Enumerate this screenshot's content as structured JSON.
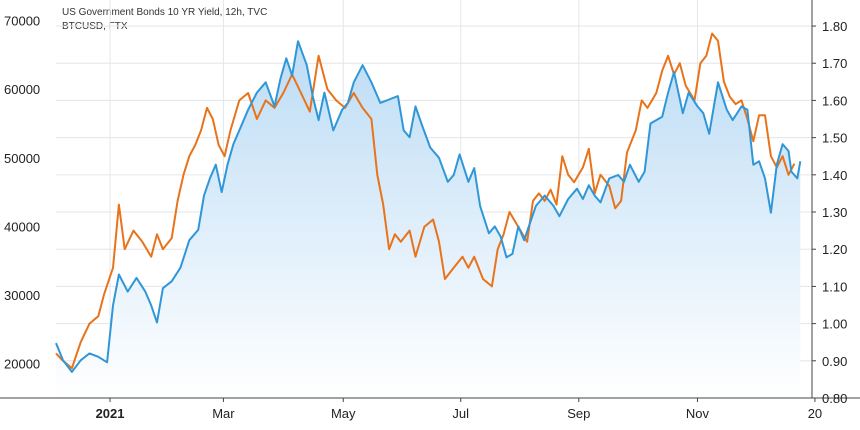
{
  "legend": {
    "line1": "US Government Bonds 10 YR Yield, 12h, TVC",
    "line2": "BTCUSD, FTX"
  },
  "colors": {
    "btc_line": "#2f97d8",
    "btc_fill_top": "#bcdcf5",
    "btc_fill_bottom": "#ffffff",
    "yield_line": "#e8731a",
    "grid": "#e3e6ea",
    "axis": "#444444"
  },
  "chart_data": {
    "type": "line",
    "title": "",
    "grid": true,
    "x_ticks": [
      {
        "label": "2021",
        "bold": true,
        "x": 0.0
      },
      {
        "label": "Mar",
        "bold": false,
        "x": 1.93
      },
      {
        "label": "May",
        "bold": false,
        "x": 3.97
      },
      {
        "label": "Jul",
        "bold": false,
        "x": 5.97
      },
      {
        "label": "Sep",
        "bold": false,
        "x": 7.98
      },
      {
        "label": "Nov",
        "bold": false,
        "x": 10.0
      },
      {
        "label": "20",
        "bold": false,
        "x": 12.0
      }
    ],
    "x_axis": {
      "label": "",
      "unit": "months since 2021-01-01",
      "range": [
        -0.92,
        11.95
      ]
    },
    "left_axis": {
      "label": "",
      "range": [
        15000,
        73000
      ],
      "ticks": [
        20000,
        30000,
        40000,
        50000,
        60000,
        70000
      ]
    },
    "right_axis": {
      "label": "",
      "range": [
        0.8,
        1.87
      ],
      "ticks": [
        0.8,
        0.9,
        1.0,
        1.1,
        1.2,
        1.3,
        1.4,
        1.5,
        1.6,
        1.7,
        1.8
      ]
    },
    "series": [
      {
        "name": "BTCUSD, FTX",
        "axis": "left",
        "area": true,
        "points": [
          [
            -0.95,
            23000
          ],
          [
            -0.8,
            20500
          ],
          [
            -0.65,
            18800
          ],
          [
            -0.5,
            20500
          ],
          [
            -0.35,
            21500
          ],
          [
            -0.2,
            21000
          ],
          [
            -0.05,
            20200
          ],
          [
            0.05,
            28500
          ],
          [
            0.15,
            33000
          ],
          [
            0.3,
            30500
          ],
          [
            0.45,
            32500
          ],
          [
            0.6,
            30500
          ],
          [
            0.7,
            28500
          ],
          [
            0.8,
            26000
          ],
          [
            0.9,
            31000
          ],
          [
            1.05,
            32000
          ],
          [
            1.2,
            34000
          ],
          [
            1.35,
            38000
          ],
          [
            1.5,
            39500
          ],
          [
            1.6,
            44500
          ],
          [
            1.7,
            47000
          ],
          [
            1.8,
            49000
          ],
          [
            1.9,
            45000
          ],
          [
            2.0,
            49000
          ],
          [
            2.1,
            52000
          ],
          [
            2.2,
            54000
          ],
          [
            2.35,
            57000
          ],
          [
            2.5,
            59500
          ],
          [
            2.65,
            61000
          ],
          [
            2.8,
            57500
          ],
          [
            2.9,
            61500
          ],
          [
            3.0,
            64500
          ],
          [
            3.1,
            62000
          ],
          [
            3.2,
            67000
          ],
          [
            3.35,
            63500
          ],
          [
            3.45,
            59000
          ],
          [
            3.55,
            55500
          ],
          [
            3.65,
            59500
          ],
          [
            3.8,
            54000
          ],
          [
            3.95,
            57000
          ],
          [
            4.05,
            58000
          ],
          [
            4.15,
            61000
          ],
          [
            4.3,
            63500
          ],
          [
            4.45,
            61000
          ],
          [
            4.6,
            58000
          ],
          [
            4.75,
            58500
          ],
          [
            4.9,
            59000
          ],
          [
            5.0,
            54000
          ],
          [
            5.1,
            53000
          ],
          [
            5.2,
            57500
          ],
          [
            5.3,
            55000
          ],
          [
            5.45,
            51500
          ],
          [
            5.6,
            50000
          ],
          [
            5.75,
            46500
          ],
          [
            5.85,
            47500
          ],
          [
            5.95,
            50500
          ],
          [
            6.1,
            46500
          ],
          [
            6.2,
            48500
          ],
          [
            6.3,
            43000
          ],
          [
            6.45,
            39000
          ],
          [
            6.55,
            40000
          ],
          [
            6.65,
            38500
          ],
          [
            6.75,
            35500
          ],
          [
            6.85,
            36000
          ],
          [
            6.95,
            40000
          ],
          [
            7.05,
            38000
          ],
          [
            7.15,
            40500
          ],
          [
            7.25,
            43000
          ],
          [
            7.4,
            44500
          ],
          [
            7.55,
            43000
          ],
          [
            7.65,
            41500
          ],
          [
            7.8,
            44000
          ],
          [
            7.95,
            45500
          ],
          [
            8.05,
            44000
          ],
          [
            8.15,
            46000
          ],
          [
            8.25,
            44500
          ],
          [
            8.35,
            43500
          ],
          [
            8.5,
            47000
          ],
          [
            8.65,
            47500
          ],
          [
            8.75,
            46500
          ],
          [
            8.85,
            49000
          ],
          [
            9.0,
            46500
          ],
          [
            9.1,
            48000
          ],
          [
            9.2,
            55000
          ],
          [
            9.3,
            55500
          ],
          [
            9.4,
            56000
          ],
          [
            9.5,
            59500
          ],
          [
            9.6,
            62500
          ],
          [
            9.75,
            56500
          ],
          [
            9.85,
            59500
          ],
          [
            10.0,
            57500
          ],
          [
            10.1,
            56500
          ],
          [
            10.2,
            53500
          ],
          [
            10.35,
            61000
          ],
          [
            10.5,
            57000
          ],
          [
            10.6,
            55500
          ],
          [
            10.75,
            57500
          ],
          [
            10.85,
            57000
          ],
          [
            10.95,
            49000
          ],
          [
            11.05,
            49500
          ],
          [
            11.15,
            47000
          ],
          [
            11.25,
            42000
          ],
          [
            11.35,
            49000
          ],
          [
            11.45,
            52000
          ],
          [
            11.55,
            51000
          ],
          [
            11.6,
            48000
          ],
          [
            11.7,
            47000
          ],
          [
            11.75,
            49500
          ]
        ]
      },
      {
        "name": "US Government Bonds 10 YR Yield, 12h, TVC",
        "axis": "right",
        "area": false,
        "points": [
          [
            -0.95,
            0.92
          ],
          [
            -0.8,
            0.9
          ],
          [
            -0.65,
            0.88
          ],
          [
            -0.5,
            0.95
          ],
          [
            -0.35,
            1.0
          ],
          [
            -0.2,
            1.02
          ],
          [
            -0.1,
            1.08
          ],
          [
            0.05,
            1.15
          ],
          [
            0.15,
            1.32
          ],
          [
            0.25,
            1.2
          ],
          [
            0.4,
            1.25
          ],
          [
            0.55,
            1.22
          ],
          [
            0.7,
            1.18
          ],
          [
            0.8,
            1.24
          ],
          [
            0.9,
            1.2
          ],
          [
            1.05,
            1.23
          ],
          [
            1.15,
            1.33
          ],
          [
            1.25,
            1.4
          ],
          [
            1.35,
            1.45
          ],
          [
            1.45,
            1.48
          ],
          [
            1.55,
            1.52
          ],
          [
            1.65,
            1.58
          ],
          [
            1.75,
            1.55
          ],
          [
            1.85,
            1.48
          ],
          [
            1.95,
            1.45
          ],
          [
            2.05,
            1.52
          ],
          [
            2.2,
            1.6
          ],
          [
            2.35,
            1.62
          ],
          [
            2.5,
            1.55
          ],
          [
            2.65,
            1.6
          ],
          [
            2.8,
            1.58
          ],
          [
            2.95,
            1.62
          ],
          [
            3.1,
            1.67
          ],
          [
            3.25,
            1.62
          ],
          [
            3.4,
            1.57
          ],
          [
            3.55,
            1.72
          ],
          [
            3.7,
            1.63
          ],
          [
            3.85,
            1.6
          ],
          [
            4.0,
            1.58
          ],
          [
            4.15,
            1.62
          ],
          [
            4.3,
            1.58
          ],
          [
            4.45,
            1.55
          ],
          [
            4.55,
            1.4
          ],
          [
            4.65,
            1.32
          ],
          [
            4.75,
            1.2
          ],
          [
            4.85,
            1.24
          ],
          [
            4.95,
            1.22
          ],
          [
            5.1,
            1.25
          ],
          [
            5.2,
            1.18
          ],
          [
            5.35,
            1.26
          ],
          [
            5.5,
            1.28
          ],
          [
            5.6,
            1.22
          ],
          [
            5.7,
            1.12
          ],
          [
            5.85,
            1.15
          ],
          [
            6.0,
            1.18
          ],
          [
            6.1,
            1.15
          ],
          [
            6.2,
            1.18
          ],
          [
            6.35,
            1.12
          ],
          [
            6.5,
            1.1
          ],
          [
            6.6,
            1.2
          ],
          [
            6.7,
            1.24
          ],
          [
            6.8,
            1.3
          ],
          [
            6.95,
            1.26
          ],
          [
            7.1,
            1.22
          ],
          [
            7.2,
            1.33
          ],
          [
            7.3,
            1.35
          ],
          [
            7.4,
            1.33
          ],
          [
            7.5,
            1.36
          ],
          [
            7.6,
            1.32
          ],
          [
            7.7,
            1.45
          ],
          [
            7.8,
            1.4
          ],
          [
            7.9,
            1.38
          ],
          [
            8.05,
            1.42
          ],
          [
            8.15,
            1.47
          ],
          [
            8.25,
            1.35
          ],
          [
            8.35,
            1.4
          ],
          [
            8.5,
            1.37
          ],
          [
            8.6,
            1.31
          ],
          [
            8.7,
            1.33
          ],
          [
            8.8,
            1.46
          ],
          [
            8.95,
            1.52
          ],
          [
            9.05,
            1.6
          ],
          [
            9.15,
            1.58
          ],
          [
            9.3,
            1.62
          ],
          [
            9.4,
            1.68
          ],
          [
            9.5,
            1.72
          ],
          [
            9.6,
            1.67
          ],
          [
            9.7,
            1.7
          ],
          [
            9.8,
            1.64
          ],
          [
            9.95,
            1.6
          ],
          [
            10.05,
            1.7
          ],
          [
            10.15,
            1.72
          ],
          [
            10.25,
            1.78
          ],
          [
            10.35,
            1.76
          ],
          [
            10.45,
            1.65
          ],
          [
            10.55,
            1.61
          ],
          [
            10.65,
            1.59
          ],
          [
            10.75,
            1.6
          ],
          [
            10.85,
            1.55
          ],
          [
            10.95,
            1.49
          ],
          [
            11.05,
            1.56
          ],
          [
            11.15,
            1.56
          ],
          [
            11.25,
            1.45
          ],
          [
            11.35,
            1.42
          ],
          [
            11.45,
            1.45
          ],
          [
            11.55,
            1.4
          ],
          [
            11.65,
            1.43
          ]
        ]
      }
    ]
  }
}
